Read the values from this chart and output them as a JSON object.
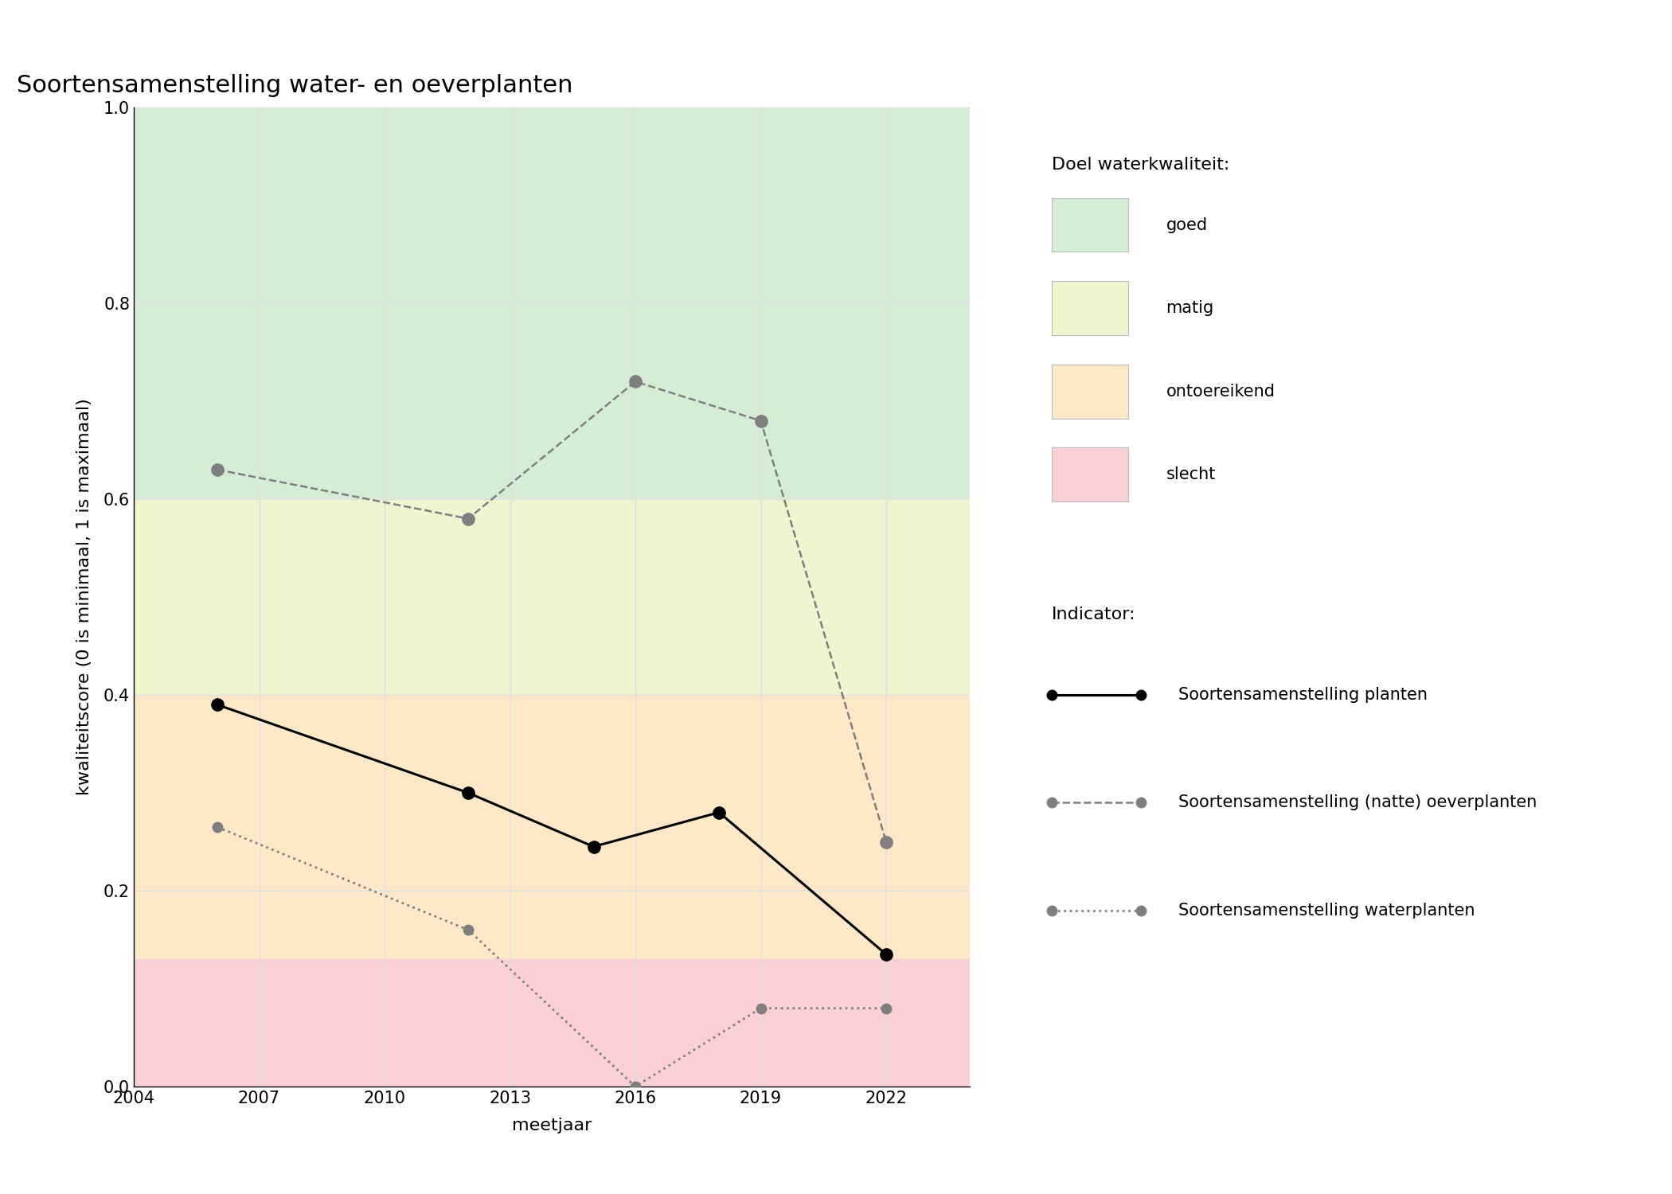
{
  "title": "Soortensamenstelling water- en oeverplanten",
  "xlabel": "meetjaar",
  "ylabel": "kwaliteitscore (0 is minimaal, 1 is maximaal)",
  "xlim": [
    2004,
    2024
  ],
  "ylim": [
    0.0,
    1.0
  ],
  "xticks": [
    2004,
    2007,
    2010,
    2013,
    2016,
    2019,
    2022
  ],
  "yticks": [
    0.0,
    0.2,
    0.4,
    0.6,
    0.8,
    1.0
  ],
  "bg_zones": [
    {
      "ymin": 0.6,
      "ymax": 1.0,
      "color": "#d6edd5",
      "label": "goed"
    },
    {
      "ymin": 0.4,
      "ymax": 0.6,
      "color": "#f0f5d0",
      "label": "matig"
    },
    {
      "ymin": 0.13,
      "ymax": 0.4,
      "color": "#fde8c8",
      "label": "ontoereikend"
    },
    {
      "ymin": 0.0,
      "ymax": 0.13,
      "color": "#fad0d5",
      "label": "slecht"
    }
  ],
  "series": [
    {
      "name": "Soortensamenstelling planten",
      "x": [
        2006,
        2012,
        2015,
        2018,
        2022
      ],
      "y": [
        0.39,
        0.3,
        0.245,
        0.28,
        0.135
      ],
      "color": "#000000",
      "linestyle": "solid",
      "linewidth": 2.2,
      "markersize": 11,
      "marker": "o",
      "zorder": 5
    },
    {
      "name": "Soortensamenstelling (natte) oeverplanten",
      "x": [
        2006,
        2012,
        2016,
        2019,
        2022
      ],
      "y": [
        0.63,
        0.58,
        0.72,
        0.68,
        0.25
      ],
      "color": "#7f7f7f",
      "linestyle": "dashed",
      "linewidth": 1.8,
      "markersize": 11,
      "marker": "o",
      "zorder": 4
    },
    {
      "name": "Soortensamenstelling waterplanten",
      "x": [
        2006,
        2012,
        2016,
        2019,
        2022
      ],
      "y": [
        0.265,
        0.16,
        0.0,
        0.08,
        0.08
      ],
      "color": "#7f7f7f",
      "linestyle": "dotted",
      "linewidth": 2.0,
      "markersize": 9,
      "marker": "o",
      "zorder": 4
    }
  ],
  "legend_title_doel": "Doel waterkwaliteit:",
  "legend_title_indicator": "Indicator:",
  "legend_bg_entries": [
    {
      "label": "goed",
      "color": "#d6edd5"
    },
    {
      "label": "matig",
      "color": "#f0f5d0"
    },
    {
      "label": "ontoereikend",
      "color": "#fde8c8"
    },
    {
      "label": "slecht",
      "color": "#fad0d5"
    }
  ],
  "figure_bg": "#ffffff",
  "plot_bg": "#ffffff",
  "grid_color": "#e0e0e0",
  "title_fontsize": 22,
  "label_fontsize": 16,
  "tick_fontsize": 15,
  "legend_fontsize": 15
}
